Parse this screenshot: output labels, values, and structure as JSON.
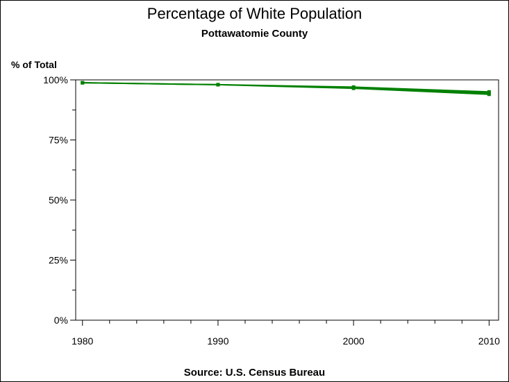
{
  "chart_data": {
    "type": "line",
    "title": "Percentage of White Population",
    "subtitle": "Pottawatomie County",
    "ylabel": "% of Total",
    "xlabel": "",
    "source": "Source: U.S. Census Bureau",
    "x": [
      1980,
      1990,
      2000,
      2010
    ],
    "xlim": [
      1979.5,
      2010.7
    ],
    "ylim": [
      0,
      100
    ],
    "xticks": [
      1980,
      1990,
      2000,
      2010
    ],
    "xtick_labels": [
      "1980",
      "1990",
      "2000",
      "2010"
    ],
    "yticks": [
      0,
      25,
      50,
      75,
      100
    ],
    "ytick_labels": [
      "0%",
      "25%",
      "50%",
      "75%",
      "100%"
    ],
    "series": [
      {
        "values": [
          98.8,
          98.0,
          97.0,
          95.0
        ]
      },
      {
        "values": [
          98.8,
          98.0,
          96.5,
          94.0
        ]
      }
    ],
    "color": "#008000",
    "grid": false,
    "legend": "none"
  }
}
